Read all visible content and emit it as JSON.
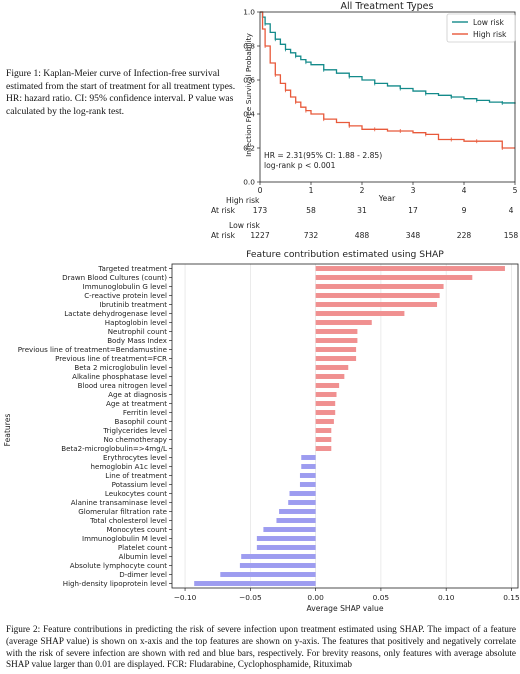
{
  "figure1": {
    "caption": "Figure 1: Kaplan-Meier curve of Infection-free survival estimated from the start of treatment for all treatment types. HR: hazard ratio. CI: 95% confidence interval. P value was calculated by the log-rank test.",
    "risk_table": {
      "groups": [
        {
          "name": "High risk",
          "row_label": "At risk",
          "counts": [
            "173",
            "58",
            "31",
            "17",
            "9",
            "4"
          ]
        },
        {
          "name": "Low risk",
          "row_label": "At risk",
          "counts": [
            "1227",
            "732",
            "488",
            "348",
            "228",
            "158"
          ]
        }
      ]
    }
  },
  "figure2": {
    "caption": "Figure 2: Feature contributions in predicting the risk of severe infection upon treatment estimated using SHAP. The impact of a feature (average SHAP value) is shown on x-axis and the top features are shown on y-axis. The features that positively and negatively correlate with the risk of severe infection are shown with red and blue bars, respectively. For brevity reasons, only features with average absolute SHAP value larger than 0.01 are displayed. FCR: Fludarabine, Cyclophosphamide, Rituximab"
  },
  "chart_data": [
    {
      "type": "line",
      "title": "All Treatment Types",
      "xlabel": "Year",
      "ylabel": "Infection Free Survival Probability",
      "xlim": [
        0,
        5
      ],
      "ylim": [
        0,
        1.0
      ],
      "xticks": [
        "0",
        "1",
        "2",
        "3",
        "4",
        "5"
      ],
      "yticks": [
        "0.0",
        "0.2",
        "0.4",
        "0.6",
        "0.8",
        "1.0"
      ],
      "legend": "top-right",
      "annotation": [
        "HR = 2.31(95% CI: 1.88 - 2.85)",
        "log-rank p < 0.001"
      ],
      "series": [
        {
          "name": "Low risk",
          "color": "#138a8a",
          "x": [
            0,
            0.05,
            0.1,
            0.2,
            0.3,
            0.4,
            0.5,
            0.6,
            0.7,
            0.8,
            0.9,
            1.0,
            1.25,
            1.5,
            1.75,
            2.0,
            2.25,
            2.5,
            2.75,
            3.0,
            3.25,
            3.5,
            3.75,
            4.0,
            4.25,
            4.5,
            4.75,
            5.0
          ],
          "y": [
            1.0,
            0.97,
            0.93,
            0.88,
            0.84,
            0.81,
            0.78,
            0.76,
            0.74,
            0.72,
            0.705,
            0.69,
            0.66,
            0.64,
            0.62,
            0.6,
            0.58,
            0.565,
            0.55,
            0.535,
            0.52,
            0.51,
            0.5,
            0.49,
            0.48,
            0.47,
            0.465,
            0.46
          ]
        },
        {
          "name": "High risk",
          "color": "#e8593a",
          "x": [
            0,
            0.05,
            0.1,
            0.2,
            0.3,
            0.4,
            0.5,
            0.6,
            0.7,
            0.8,
            0.9,
            1.0,
            1.25,
            1.5,
            1.75,
            2.0,
            2.25,
            2.5,
            2.75,
            3.0,
            3.25,
            3.5,
            3.75,
            4.0,
            4.25,
            4.5,
            4.75,
            5.0
          ],
          "y": [
            1.0,
            0.9,
            0.8,
            0.7,
            0.63,
            0.58,
            0.54,
            0.5,
            0.47,
            0.44,
            0.42,
            0.4,
            0.37,
            0.35,
            0.33,
            0.31,
            0.31,
            0.3,
            0.3,
            0.29,
            0.28,
            0.25,
            0.25,
            0.24,
            0.24,
            0.24,
            0.2,
            0.2
          ]
        }
      ]
    },
    {
      "type": "bar",
      "orientation": "horizontal",
      "title": "Feature contribution estimated using SHAP",
      "xlabel": "Average SHAP value",
      "ylabel": "Features",
      "xlim": [
        -0.11,
        0.155
      ],
      "xticks": [
        -0.1,
        -0.05,
        0.0,
        0.05,
        0.1,
        0.15
      ],
      "xtick_labels": [
        "−0.10",
        "−0.05",
        "0.00",
        "0.05",
        "0.10",
        "0.15"
      ],
      "positive_color": "#f09090",
      "negative_color": "#9d9cf0",
      "categories": [
        "Targeted treatment",
        "Drawn Blood Cultures (count)",
        "Immunoglobulin G level",
        "C-reactive protein level",
        "Ibrutinib treatment",
        "Lactate dehydrogenase level",
        "Haptoglobin level",
        "Neutrophil count",
        "Body Mass Index",
        "Previous line of treatment=Bendamustine",
        "Previous line of treatment=FCR",
        "Beta 2 microglobulin level",
        "Alkaline phosphatase level",
        "Blood urea nitrogen level",
        "Age at diagnosis",
        "Age at treatment",
        "Ferritin level",
        "Basophil count",
        "Triglycerides level",
        "No chemotherapy",
        "Beta2-microglobulin=>4mg/L",
        "Erythrocytes level",
        "hemoglobin A1c level",
        "Line of treatment",
        "Potassium level",
        "Leukocytes count",
        "Alanine transaminase level",
        "Glomerular filtration rate",
        "Total cholesterol level",
        "Monocytes count",
        "Immunoglobulin M level",
        "Platelet count",
        "Albumin level",
        "Absolute lymphocyte count",
        "D-dimer level",
        "High-density lipoprotein level"
      ],
      "values": [
        0.145,
        0.12,
        0.098,
        0.095,
        0.093,
        0.068,
        0.043,
        0.032,
        0.032,
        0.031,
        0.031,
        0.025,
        0.022,
        0.018,
        0.016,
        0.015,
        0.015,
        0.014,
        0.012,
        0.012,
        0.012,
        -0.011,
        -0.011,
        -0.012,
        -0.012,
        -0.02,
        -0.021,
        -0.028,
        -0.03,
        -0.04,
        -0.045,
        -0.045,
        -0.057,
        -0.058,
        -0.073,
        -0.093
      ]
    }
  ]
}
